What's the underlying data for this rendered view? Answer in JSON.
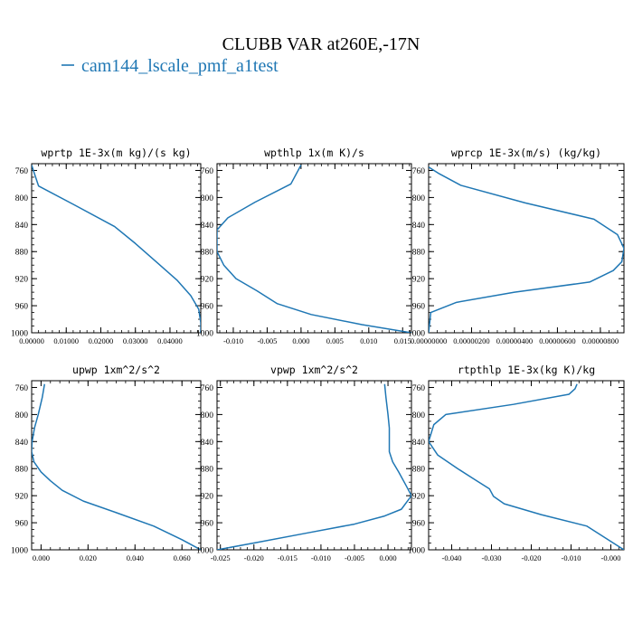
{
  "figure": {
    "title": "CLUBB VAR at260E,-17N",
    "legend_label": "cam144_lscale_pmf_a1test",
    "line_color": "#1f77b4"
  },
  "chart_data": [
    {
      "type": "line",
      "title": "wprtp  1E-3x(m kg)/(s kg)",
      "xlim": [
        0.0,
        0.0489
      ],
      "ylim": [
        1000,
        750
      ],
      "xticks": [
        0.0,
        0.01,
        0.02,
        0.03,
        0.04
      ],
      "xtick_labels": [
        "0.00000",
        "0.01000",
        "0.02000",
        "0.03000",
        "0.04000"
      ],
      "yticks": [
        760,
        800,
        840,
        880,
        920,
        960,
        1000
      ],
      "ytick_labels": [
        "760",
        "800",
        "840",
        "880",
        "920",
        "960",
        "1000"
      ],
      "series": [
        {
          "x": [
            0.0,
            0.0005,
            0.002,
            0.012,
            0.024,
            0.03,
            0.036,
            0.042,
            0.046,
            0.0483,
            0.0489,
            0.0489
          ],
          "y": [
            752,
            760,
            783,
            810,
            843,
            868,
            895,
            922,
            945,
            965,
            985,
            1000
          ]
        }
      ]
    },
    {
      "type": "line",
      "title": "wpthlp  1x(m K)/s",
      "xlim": [
        -0.0124,
        0.0163
      ],
      "ylim": [
        1000,
        750
      ],
      "xticks": [
        -0.01,
        -0.005,
        0.0,
        0.005,
        0.01,
        0.015
      ],
      "xtick_labels": [
        "-0.010",
        "-0.005",
        "0.000",
        "0.005",
        "0.010",
        "0.015"
      ],
      "yticks": [
        760,
        800,
        840,
        880,
        920,
        960,
        1000
      ],
      "ytick_labels": [
        "760",
        "800",
        "840",
        "880",
        "920",
        "960",
        "1000"
      ],
      "series": [
        {
          "x": [
            0.0,
            -0.0015,
            -0.0068,
            -0.0108,
            -0.0124,
            -0.0124,
            -0.0114,
            -0.0096,
            -0.0065,
            -0.0035,
            0.0015,
            0.009,
            0.0163
          ],
          "y": [
            752,
            780,
            807,
            830,
            848,
            880,
            900,
            920,
            938,
            957,
            973,
            988,
            1000
          ]
        }
      ]
    },
    {
      "type": "line",
      "title": "wprcp  1E-3x(m/s) (kg/kg)",
      "xlim": [
        0.0,
        9.1e-06
      ],
      "ylim": [
        1000,
        750
      ],
      "xticks": [
        0.0,
        2e-06,
        4e-06,
        6e-06,
        8e-06
      ],
      "xtick_labels": [
        "0.00000000",
        "0.00000200",
        "0.00000400",
        "0.00000600",
        "0.00000800"
      ],
      "yticks": [
        760,
        800,
        840,
        880,
        920,
        960,
        1000
      ],
      "ytick_labels": [
        "760",
        "800",
        "840",
        "880",
        "920",
        "960",
        "1000"
      ],
      "series": [
        {
          "x": [
            0.0,
            5e-07,
            1.5e-06,
            4.5e-06,
            7.7e-06,
            8.8e-06,
            9.1e-06,
            9e-06,
            8.6e-06,
            7.5e-06,
            4e-06,
            1.3e-06,
            1e-07,
            0.0
          ],
          "y": [
            755,
            765,
            782,
            808,
            832,
            855,
            875,
            895,
            908,
            925,
            940,
            955,
            970,
            1000
          ]
        }
      ]
    },
    {
      "type": "line",
      "title": "upwp  1xm^2/s^2",
      "xlim": [
        -0.004,
        0.068
      ],
      "ylim": [
        1000,
        750
      ],
      "xticks": [
        0.0,
        0.02,
        0.04,
        0.06
      ],
      "xtick_labels": [
        "0.000",
        "0.020",
        "0.040",
        "0.060"
      ],
      "yticks": [
        760,
        800,
        840,
        880,
        920,
        960,
        1000
      ],
      "ytick_labels": [
        "760",
        "800",
        "840",
        "880",
        "920",
        "960",
        "1000"
      ],
      "series": [
        {
          "x": [
            0.0015,
            0.0005,
            -0.0012,
            -0.0028,
            -0.0038,
            -0.004,
            -0.003,
            0.0,
            0.004,
            0.009,
            0.018,
            0.032,
            0.048,
            0.06,
            0.068
          ],
          "y": [
            755,
            775,
            800,
            820,
            840,
            855,
            870,
            885,
            898,
            912,
            928,
            945,
            965,
            985,
            1000
          ]
        }
      ]
    },
    {
      "type": "line",
      "title": "vpwp  1xm^2/s^2",
      "xlim": [
        -0.0255,
        0.0035
      ],
      "ylim": [
        1000,
        750
      ],
      "xticks": [
        -0.025,
        -0.02,
        -0.015,
        -0.01,
        -0.005,
        0.0
      ],
      "xtick_labels": [
        "-0.025",
        "-0.020",
        "-0.015",
        "-0.010",
        "-0.005",
        "0.000"
      ],
      "yticks": [
        760,
        800,
        840,
        880,
        920,
        960,
        1000
      ],
      "ytick_labels": [
        "760",
        "800",
        "840",
        "880",
        "920",
        "960",
        "1000"
      ],
      "series": [
        {
          "x": [
            -0.0005,
            -0.0003,
            0.0,
            0.0002,
            0.0002,
            0.0002,
            0.0007,
            0.0016,
            0.0027,
            0.0035,
            0.002,
            -0.0005,
            -0.005,
            -0.012,
            -0.02,
            -0.0255
          ],
          "y": [
            755,
            775,
            800,
            820,
            840,
            855,
            870,
            885,
            905,
            920,
            940,
            950,
            962,
            975,
            990,
            1000
          ]
        }
      ]
    },
    {
      "type": "line",
      "title": "rtpthlp  1E-3x(kg K)/kg",
      "xlim": [
        -0.0458,
        0.0033
      ],
      "ylim": [
        1000,
        750
      ],
      "xticks": [
        -0.04,
        -0.03,
        -0.02,
        -0.01,
        0.0
      ],
      "xtick_labels": [
        "-0.040",
        "-0.030",
        "-0.020",
        "-0.010",
        "-0.000"
      ],
      "yticks": [
        760,
        800,
        840,
        880,
        920,
        960,
        1000
      ],
      "ytick_labels": [
        "760",
        "800",
        "840",
        "880",
        "920",
        "960",
        "1000"
      ],
      "series": [
        {
          "x": [
            -0.0085,
            -0.009,
            -0.0105,
            -0.0245,
            -0.0415,
            -0.0445,
            -0.0458,
            -0.0435,
            -0.0385,
            -0.0345,
            -0.0305,
            -0.0295,
            -0.0268,
            -0.0175,
            -0.006,
            0.0033
          ],
          "y": [
            755,
            762,
            770,
            785,
            800,
            815,
            840,
            860,
            880,
            895,
            910,
            921,
            932,
            948,
            965,
            1000
          ]
        }
      ]
    }
  ]
}
